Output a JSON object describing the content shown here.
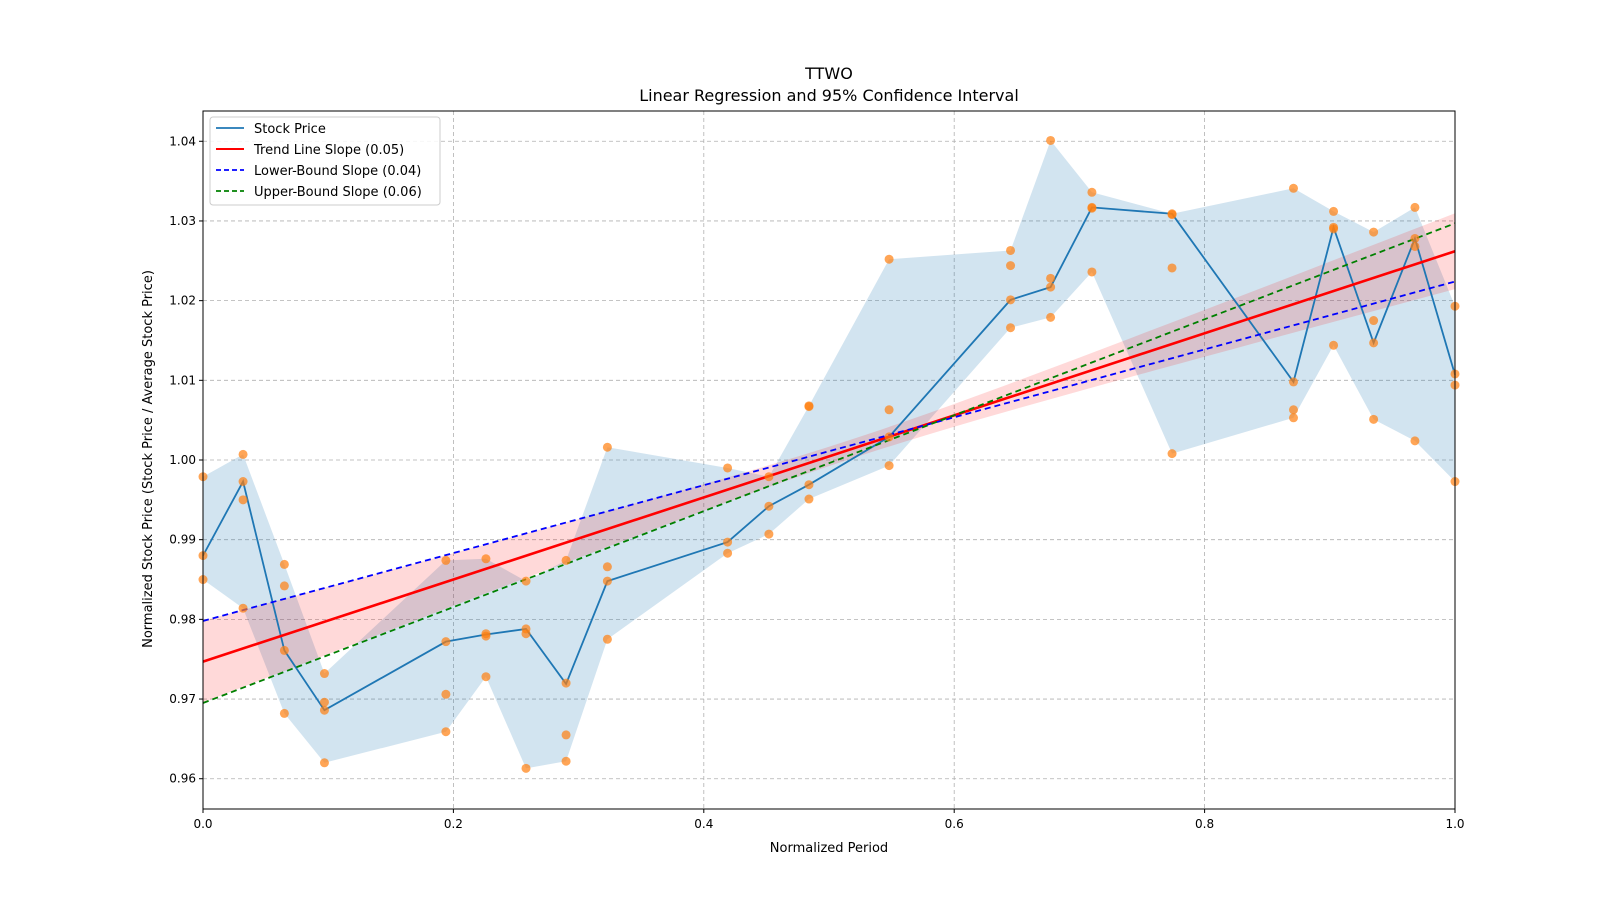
{
  "chart_data": {
    "type": "line",
    "title": "TTWO",
    "subtitle": "Linear Regression and 95% Confidence Interval",
    "xlabel": "Normalized Period",
    "ylabel": "Normalized Stock Price (Stock Price / Average Stock Price)",
    "xlim": [
      0,
      1
    ],
    "ylim": [
      0.9562,
      1.0438
    ],
    "xticks": [
      "0.0",
      "0.2",
      "0.4",
      "0.6",
      "0.8",
      "1.0"
    ],
    "yticks": [
      "0.96",
      "0.97",
      "0.98",
      "0.99",
      "1.00",
      "1.01",
      "1.02",
      "1.03",
      "1.04"
    ],
    "grid": true,
    "legend_position": "top-left",
    "legend": [
      {
        "label": "Stock Price",
        "color": "#1f77b4",
        "style": "solid"
      },
      {
        "label": "Trend Line Slope (0.05)",
        "color": "#ff0000",
        "style": "solid"
      },
      {
        "label": "Lower-Bound Slope (0.04)",
        "color": "#0000ff",
        "style": "dashed"
      },
      {
        "label": "Upper-Bound Slope (0.06)",
        "color": "#008000",
        "style": "dashed"
      }
    ],
    "x": [
      0,
      0.032,
      0.065,
      0.097,
      0.194,
      0.226,
      0.258,
      0.29,
      0.323,
      0.419,
      0.452,
      0.484,
      0.548,
      0.645,
      0.677,
      0.71,
      0.774,
      0.871,
      0.903,
      0.935,
      0.968,
      1.0
    ],
    "stock_price": [
      0.988,
      0.9973,
      0.9761,
      0.9686,
      0.9772,
      0.9781,
      0.9788,
      0.9719,
      0.9848,
      0.9897,
      0.9942,
      0.9969,
      1.0029,
      1.0201,
      1.0217,
      1.0317,
      1.0309,
      1.0098,
      1.0292,
      1.0147,
      1.0278,
      1.0107
    ],
    "scatter": [
      [
        0.9979,
        0.988,
        0.985
      ],
      [
        1.0007,
        0.9973,
        0.995,
        0.9814
      ],
      [
        0.9869,
        0.9842,
        0.9761,
        0.9682
      ],
      [
        0.9732,
        0.9696,
        0.9686,
        0.962
      ],
      [
        0.9874,
        0.9772,
        0.9706,
        0.9659
      ],
      [
        0.9876,
        0.9782,
        0.9779,
        0.9728
      ],
      [
        0.9848,
        0.9788,
        0.9782,
        0.9613
      ],
      [
        0.9874,
        0.972,
        0.9655,
        0.9622
      ],
      [
        1.0016,
        0.9866,
        0.9848,
        0.9775
      ],
      [
        0.999,
        0.9897,
        0.9883
      ],
      [
        0.9979,
        0.9942,
        0.9907
      ],
      [
        1.0068,
        1.0067,
        0.9969,
        0.9951
      ],
      [
        1.0252,
        1.0063,
        1.0029,
        0.9993
      ],
      [
        1.0263,
        1.0244,
        1.0201,
        1.0166
      ],
      [
        1.0401,
        1.0228,
        1.0217,
        1.0179
      ],
      [
        1.0336,
        1.0317,
        1.0316,
        1.0236
      ],
      [
        1.0309,
        1.0308,
        1.0241,
        1.0008
      ],
      [
        1.0341,
        1.0098,
        1.0063,
        1.0053
      ],
      [
        1.0312,
        1.0292,
        1.029,
        1.0144
      ],
      [
        1.0286,
        1.0175,
        1.0147,
        1.0051
      ],
      [
        1.0317,
        1.0278,
        1.0268,
        1.0024
      ],
      [
        1.0193,
        1.0108,
        1.0094,
        0.9973
      ]
    ],
    "trend_line": {
      "start": 0.9747,
      "end": 1.0262,
      "slope": 0.05
    },
    "lower_bound_line": {
      "start": 0.9798,
      "end": 1.0224,
      "slope": 0.04
    },
    "upper_bound_line": {
      "start": 0.9695,
      "end": 1.0297,
      "slope": 0.06
    },
    "colors": {
      "stock": "#1f77b4",
      "points": "#ff7f0e",
      "trend": "#ff0000",
      "ci_band": "#ff0000",
      "lower": "#0000ff",
      "upper": "#008000"
    }
  }
}
